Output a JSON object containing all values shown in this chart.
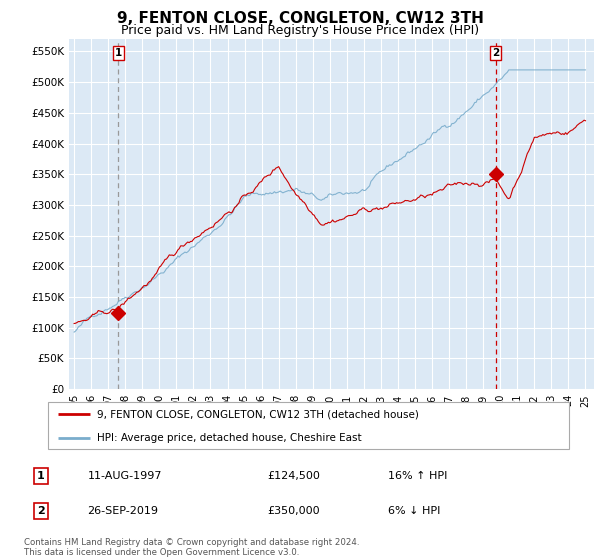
{
  "title": "9, FENTON CLOSE, CONGLETON, CW12 3TH",
  "subtitle": "Price paid vs. HM Land Registry's House Price Index (HPI)",
  "title_fontsize": 11,
  "subtitle_fontsize": 9,
  "background_color": "#dce9f5",
  "plot_bg_color": "#dce9f5",
  "grid_color": "#ffffff",
  "ylim": [
    0,
    570000
  ],
  "yticks": [
    0,
    50000,
    100000,
    150000,
    200000,
    250000,
    300000,
    350000,
    400000,
    450000,
    500000,
    550000
  ],
  "ytick_labels": [
    "£0",
    "£50K",
    "£100K",
    "£150K",
    "£200K",
    "£250K",
    "£300K",
    "£350K",
    "£400K",
    "£450K",
    "£500K",
    "£550K"
  ],
  "sale1_year": 1997.6,
  "sale1_price": 124500,
  "sale2_year": 2019.73,
  "sale2_price": 350000,
  "legend_line1": "9, FENTON CLOSE, CONGLETON, CW12 3TH (detached house)",
  "legend_line2": "HPI: Average price, detached house, Cheshire East",
  "table_row1": [
    "1",
    "11-AUG-1997",
    "£124,500",
    "16% ↑ HPI"
  ],
  "table_row2": [
    "2",
    "26-SEP-2019",
    "£350,000",
    "6% ↓ HPI"
  ],
  "footer": "Contains HM Land Registry data © Crown copyright and database right 2024.\nThis data is licensed under the Open Government Licence v3.0.",
  "line_color_red": "#cc0000",
  "line_color_blue": "#7aadcc",
  "marker_color": "#cc0000",
  "sale1_vline_color": "#999999",
  "sale2_vline_color": "#cc0000"
}
